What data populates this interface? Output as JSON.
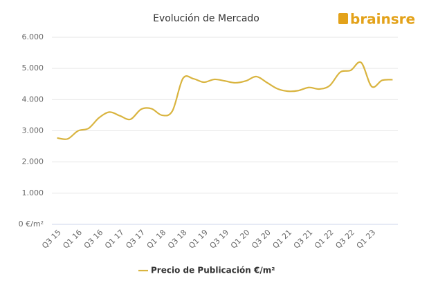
{
  "logo": "brainsre",
  "chart_data": {
    "type": "line",
    "title": "Evolución de Mercado",
    "categories": [
      "Q3 15",
      null,
      "Q1 16",
      null,
      "Q3 16",
      null,
      "Q1 17",
      null,
      "Q3 17",
      null,
      "Q1 18",
      null,
      "Q3 18",
      null,
      "Q1 19",
      null,
      "Q3 19",
      null,
      "Q1 20",
      null,
      "Q3 20",
      null,
      "Q1 21",
      null,
      "Q3 21",
      null,
      "Q1 22",
      null,
      "Q3 22",
      null,
      "Q1 23",
      null,
      null
    ],
    "series": [
      {
        "name": "Precio de Publicación €/m²",
        "color": "#d9b43f",
        "values": [
          2770,
          2740,
          3000,
          3080,
          3420,
          3600,
          3480,
          3370,
          3690,
          3710,
          3500,
          3640,
          4680,
          4670,
          4560,
          4650,
          4600,
          4540,
          4600,
          4740,
          4550,
          4350,
          4270,
          4290,
          4390,
          4340,
          4450,
          4880,
          4940,
          5190,
          4420,
          4620,
          4640
        ]
      }
    ],
    "ylim": [
      0,
      6000
    ],
    "yticks": [
      {
        "value": 0,
        "label": "0 €/m²"
      },
      {
        "value": 1000,
        "label": "1.000"
      },
      {
        "value": 2000,
        "label": "2.000"
      },
      {
        "value": 3000,
        "label": "3.000"
      },
      {
        "value": 4000,
        "label": "4.000"
      },
      {
        "value": 5000,
        "label": "5.000"
      },
      {
        "value": 6000,
        "label": "6.000"
      }
    ],
    "grid": true,
    "legend": "bottom"
  }
}
